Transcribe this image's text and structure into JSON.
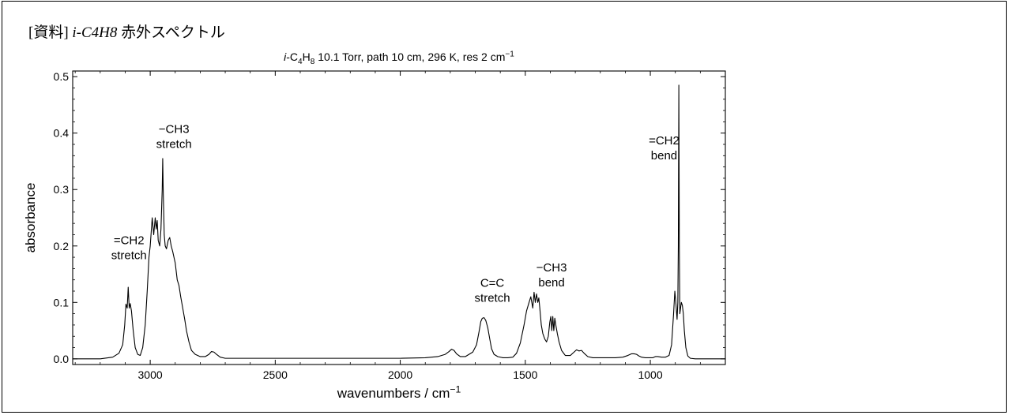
{
  "document": {
    "title_prefix": "[資料]",
    "title_molecule": "i-C4H8",
    "title_suffix": "赤外スペクトル"
  },
  "chart_data": {
    "type": "line",
    "title": "i-C4H8 10.1 Torr, path 10 cm, 296 K, res 2 cm−1",
    "xlabel": "wavenumbers / cm−1",
    "ylabel": "absorbance",
    "xlim": [
      3310,
      700
    ],
    "ylim": [
      -0.01,
      0.51
    ],
    "x_reversed": true,
    "xticks": [
      3000,
      2500,
      2000,
      1500,
      1000
    ],
    "yticks": [
      "0.0",
      "0.1",
      "0.2",
      "0.3",
      "0.4",
      "0.5"
    ],
    "grid": false,
    "series": [
      {
        "x": [
          3310,
          3200,
          3150,
          3125,
          3110,
          3102,
          3097,
          3092,
          3088,
          3084,
          3080,
          3075,
          3068,
          3060,
          3050,
          3040,
          3030,
          3020,
          3012,
          3005,
          3000,
          2992,
          2986,
          2980,
          2976,
          2972,
          2968,
          2962,
          2957,
          2952,
          2950,
          2948,
          2944,
          2940,
          2935,
          2928,
          2922,
          2916,
          2910,
          2900,
          2892,
          2885,
          2878,
          2870,
          2862,
          2855,
          2845,
          2835,
          2820,
          2800,
          2780,
          2765,
          2755,
          2745,
          2735,
          2720,
          2700,
          2600,
          2500,
          2400,
          2300,
          2200,
          2100,
          2000,
          1900,
          1850,
          1820,
          1805,
          1795,
          1785,
          1775,
          1760,
          1740,
          1710,
          1695,
          1685,
          1678,
          1672,
          1665,
          1658,
          1650,
          1642,
          1635,
          1625,
          1610,
          1590,
          1570,
          1550,
          1535,
          1520,
          1505,
          1495,
          1485,
          1478,
          1470,
          1465,
          1460,
          1455,
          1450,
          1446,
          1442,
          1436,
          1430,
          1422,
          1415,
          1408,
          1402,
          1398,
          1394,
          1390,
          1386,
          1382,
          1378,
          1372,
          1365,
          1355,
          1340,
          1320,
          1305,
          1295,
          1285,
          1275,
          1265,
          1250,
          1230,
          1200,
          1170,
          1140,
          1110,
          1090,
          1075,
          1065,
          1055,
          1045,
          1035,
          1020,
          1005,
          990,
          980,
          970,
          955,
          940,
          925,
          915,
          907,
          902,
          898,
          893,
          890,
          888,
          886,
          884,
          882,
          879,
          876,
          872,
          868,
          864,
          858,
          850,
          840,
          820,
          780,
          740,
          700
        ],
        "y": [
          0.0,
          0.0,
          0.003,
          0.01,
          0.025,
          0.06,
          0.097,
          0.09,
          0.127,
          0.09,
          0.098,
          0.085,
          0.05,
          0.02,
          0.008,
          0.006,
          0.02,
          0.06,
          0.12,
          0.18,
          0.2,
          0.25,
          0.22,
          0.25,
          0.23,
          0.245,
          0.21,
          0.2,
          0.23,
          0.3,
          0.355,
          0.3,
          0.22,
          0.2,
          0.195,
          0.21,
          0.215,
          0.2,
          0.19,
          0.17,
          0.14,
          0.13,
          0.11,
          0.09,
          0.07,
          0.05,
          0.03,
          0.015,
          0.008,
          0.004,
          0.004,
          0.008,
          0.013,
          0.012,
          0.008,
          0.003,
          0.001,
          0.001,
          0.001,
          0.001,
          0.001,
          0.001,
          0.001,
          0.001,
          0.002,
          0.004,
          0.008,
          0.013,
          0.017,
          0.015,
          0.009,
          0.004,
          0.004,
          0.012,
          0.025,
          0.048,
          0.066,
          0.072,
          0.073,
          0.068,
          0.055,
          0.035,
          0.018,
          0.008,
          0.004,
          0.002,
          0.002,
          0.003,
          0.01,
          0.028,
          0.06,
          0.085,
          0.1,
          0.11,
          0.09,
          0.118,
          0.1,
          0.115,
          0.1,
          0.108,
          0.09,
          0.06,
          0.045,
          0.035,
          0.03,
          0.04,
          0.065,
          0.075,
          0.05,
          0.075,
          0.05,
          0.072,
          0.06,
          0.045,
          0.03,
          0.015,
          0.006,
          0.006,
          0.012,
          0.016,
          0.014,
          0.015,
          0.01,
          0.004,
          0.002,
          0.002,
          0.002,
          0.002,
          0.003,
          0.006,
          0.009,
          0.009,
          0.008,
          0.005,
          0.003,
          0.002,
          0.002,
          0.002,
          0.004,
          0.004,
          0.003,
          0.003,
          0.006,
          0.025,
          0.08,
          0.12,
          0.1,
          0.07,
          0.1,
          0.2,
          0.485,
          0.2,
          0.08,
          0.09,
          0.1,
          0.095,
          0.08,
          0.05,
          0.02,
          0.005,
          0.001,
          0.0,
          0.0,
          0.0,
          0.0
        ]
      }
    ],
    "annotations": [
      {
        "line1": "=CH2",
        "line2": "stretch",
        "x": 3085,
        "y": 0.203
      },
      {
        "line1": "−CH3",
        "line2": "stretch",
        "x": 2905,
        "y": 0.4
      },
      {
        "line1": "C=C",
        "line2": "stretch",
        "x": 1632,
        "y": 0.128
      },
      {
        "line1": "−CH3",
        "line2": "bend",
        "x": 1395,
        "y": 0.155
      },
      {
        "line1": "=CH2",
        "line2": "bend",
        "x": 945,
        "y": 0.38
      }
    ]
  }
}
